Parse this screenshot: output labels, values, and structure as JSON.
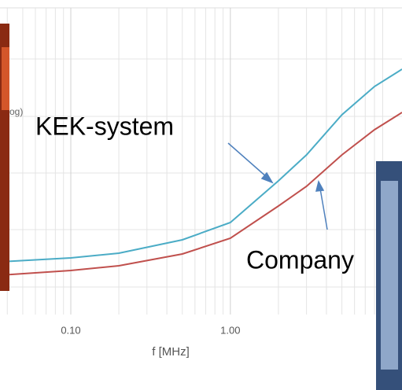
{
  "chart_data": {
    "type": "line",
    "y_label_fragment": "og)",
    "x_label": "f [MHz]",
    "xscale": "log",
    "xlim": [
      0.036,
      11.9
    ],
    "xticks": [
      {
        "value": 0.1,
        "label": "0.10"
      },
      {
        "value": 1,
        "label": "1.00"
      }
    ],
    "ylim": [
      0,
      100
    ],
    "grid": true,
    "x": [
      0.036,
      0.1,
      0.2,
      0.5,
      1,
      2,
      3,
      5,
      8,
      11.9
    ],
    "series": [
      {
        "name": "KEK-system",
        "color": "#4bacc6",
        "values": [
          16.75,
          18,
          19.5,
          23.75,
          29.25,
          42.5,
          50.75,
          63.5,
          72.5,
          78
        ]
      },
      {
        "name": "Company",
        "color": "#c0504d",
        "values": [
          12.5,
          14,
          15.5,
          19.25,
          24.25,
          34.5,
          40.75,
          50.75,
          58.75,
          64.25
        ]
      }
    ]
  }
}
